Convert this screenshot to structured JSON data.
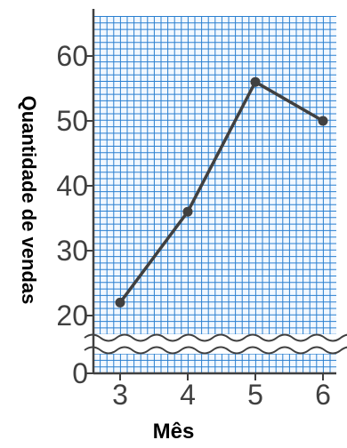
{
  "chart_data": {
    "type": "line",
    "xlabel": "Mês",
    "ylabel": "Quantidade de vendas",
    "x": [
      3,
      4,
      5,
      6
    ],
    "x_tick_labels": [
      "3",
      "4",
      "5",
      "6"
    ],
    "y_tick_labels": [
      "0",
      "20",
      "30",
      "40",
      "50",
      "60"
    ],
    "series": [
      {
        "values": [
          22,
          36,
          56,
          50
        ]
      }
    ],
    "ylim": [
      0,
      60
    ],
    "axis_break": "between 0 and 20",
    "grid": true,
    "colors": {
      "grid": "#2a7fd0",
      "line": "#404040",
      "text": "#404040"
    }
  }
}
